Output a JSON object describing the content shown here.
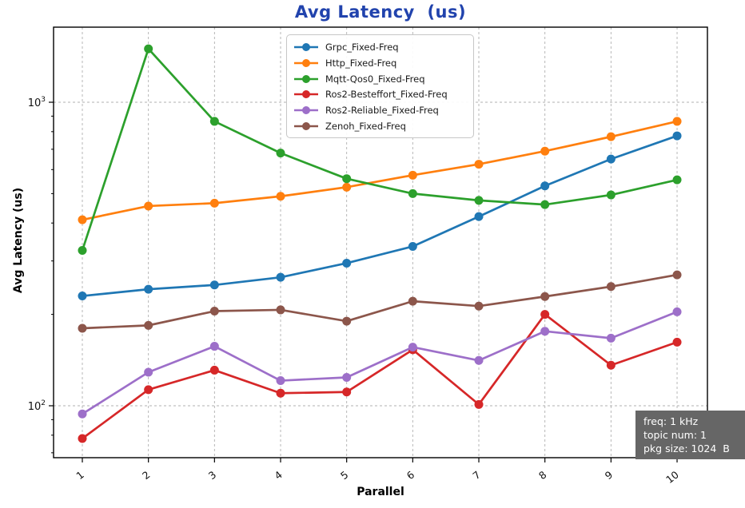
{
  "title": {
    "text": "Avg Latency  (us)",
    "color": "#2143ad"
  },
  "axis": {
    "xlabel": "Parallel",
    "ylabel": "Avg Latency (us)"
  },
  "chart_data": {
    "type": "line",
    "title": "Avg Latency  (us)",
    "xlabel": "Parallel",
    "ylabel": "Avg Latency (us)",
    "x": [
      1,
      2,
      3,
      4,
      5,
      6,
      7,
      8,
      9,
      10
    ],
    "y_scale": "log",
    "ylim": [
      67,
      1770
    ],
    "xlim": [
      0.55,
      10.46
    ],
    "grid": "dashed-major",
    "legend_position": "upper-center-inside",
    "x_ticks": [
      "1",
      "2",
      "3",
      "4",
      "5",
      "6",
      "7",
      "8",
      "9",
      "10"
    ],
    "y_major_ticks": [
      {
        "value": 100,
        "base": "10",
        "exp": "2"
      },
      {
        "value": 1000,
        "base": "10",
        "exp": "3"
      }
    ],
    "y_minor_ticks": [
      70,
      80,
      90,
      200,
      300,
      400,
      500,
      600,
      700,
      800,
      900
    ],
    "series": [
      {
        "name": "Grpc_Fixed-Freq",
        "color": "#1f77b4",
        "values": [
          230,
          242,
          250,
          265,
          295,
          335,
          420,
          530,
          650,
          775
        ]
      },
      {
        "name": "Http_Fixed-Freq",
        "color": "#ff7f0e",
        "values": [
          410,
          455,
          465,
          490,
          525,
          575,
          625,
          690,
          770,
          865
        ]
      },
      {
        "name": "Mqtt-Qos0_Fixed-Freq",
        "color": "#2ca02c",
        "values": [
          325,
          1500,
          865,
          680,
          560,
          500,
          475,
          460,
          495,
          555
        ]
      },
      {
        "name": "Ros2-Besteffort_Fixed-Freq",
        "color": "#d62728",
        "values": [
          78,
          113,
          131,
          110,
          111,
          153,
          101,
          200,
          136,
          162
        ]
      },
      {
        "name": "Ros2-Reliable_Fixed-Freq",
        "color": "#9d6fc9",
        "values": [
          94,
          129,
          157,
          121,
          124,
          156,
          141,
          176,
          167,
          204
        ]
      },
      {
        "name": "Zenoh_Fixed-Freq",
        "color": "#8c564b",
        "values": [
          180,
          184,
          205,
          207,
          190,
          221,
          213,
          229,
          247,
          270
        ]
      }
    ]
  },
  "annotation_box": {
    "lines": [
      "freq: 1 kHz",
      "topic num: 1",
      "pkg size: 1024  B"
    ],
    "bg": "#666666",
    "text_color": "#ffffff"
  }
}
